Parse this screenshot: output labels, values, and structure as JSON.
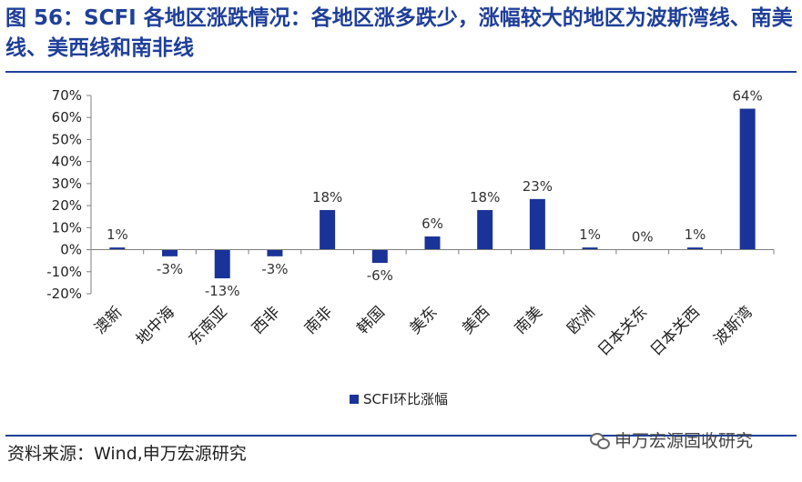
{
  "header": {
    "title": "图 56：SCFI 各地区涨跌情况：各地区涨多跌少，涨幅较大的地区为波斯湾线、南美线、美西线和南非线"
  },
  "footer": {
    "source": "资料来源：Wind,申万宏源研究",
    "watermark": "申万宏源固收研究"
  },
  "chart_data": {
    "type": "bar",
    "categories": [
      "澳新",
      "地中海",
      "东南亚",
      "西非",
      "南非",
      "韩国",
      "美东",
      "美西",
      "南美",
      "欧洲",
      "日本关东",
      "日本关西",
      "波斯湾"
    ],
    "series": [
      {
        "name": "SCFI环比涨幅",
        "values": [
          1,
          -3,
          -13,
          -3,
          18,
          -6,
          6,
          18,
          23,
          1,
          0,
          1,
          64
        ],
        "labels": [
          "1%",
          "-3%",
          "-13%",
          "-3%",
          "18%",
          "-6%",
          "6%",
          "18%",
          "23%",
          "1%",
          "0%",
          "1%",
          "64%"
        ]
      }
    ],
    "y_ticks": [
      "70%",
      "60%",
      "50%",
      "40%",
      "30%",
      "20%",
      "10%",
      "0%",
      "-10%",
      "-20%"
    ],
    "ylim": [
      -20,
      70
    ],
    "legend_position": "bottom-center",
    "colors": {
      "bar": "#1a3399",
      "axis": "#7f7f7f"
    }
  }
}
